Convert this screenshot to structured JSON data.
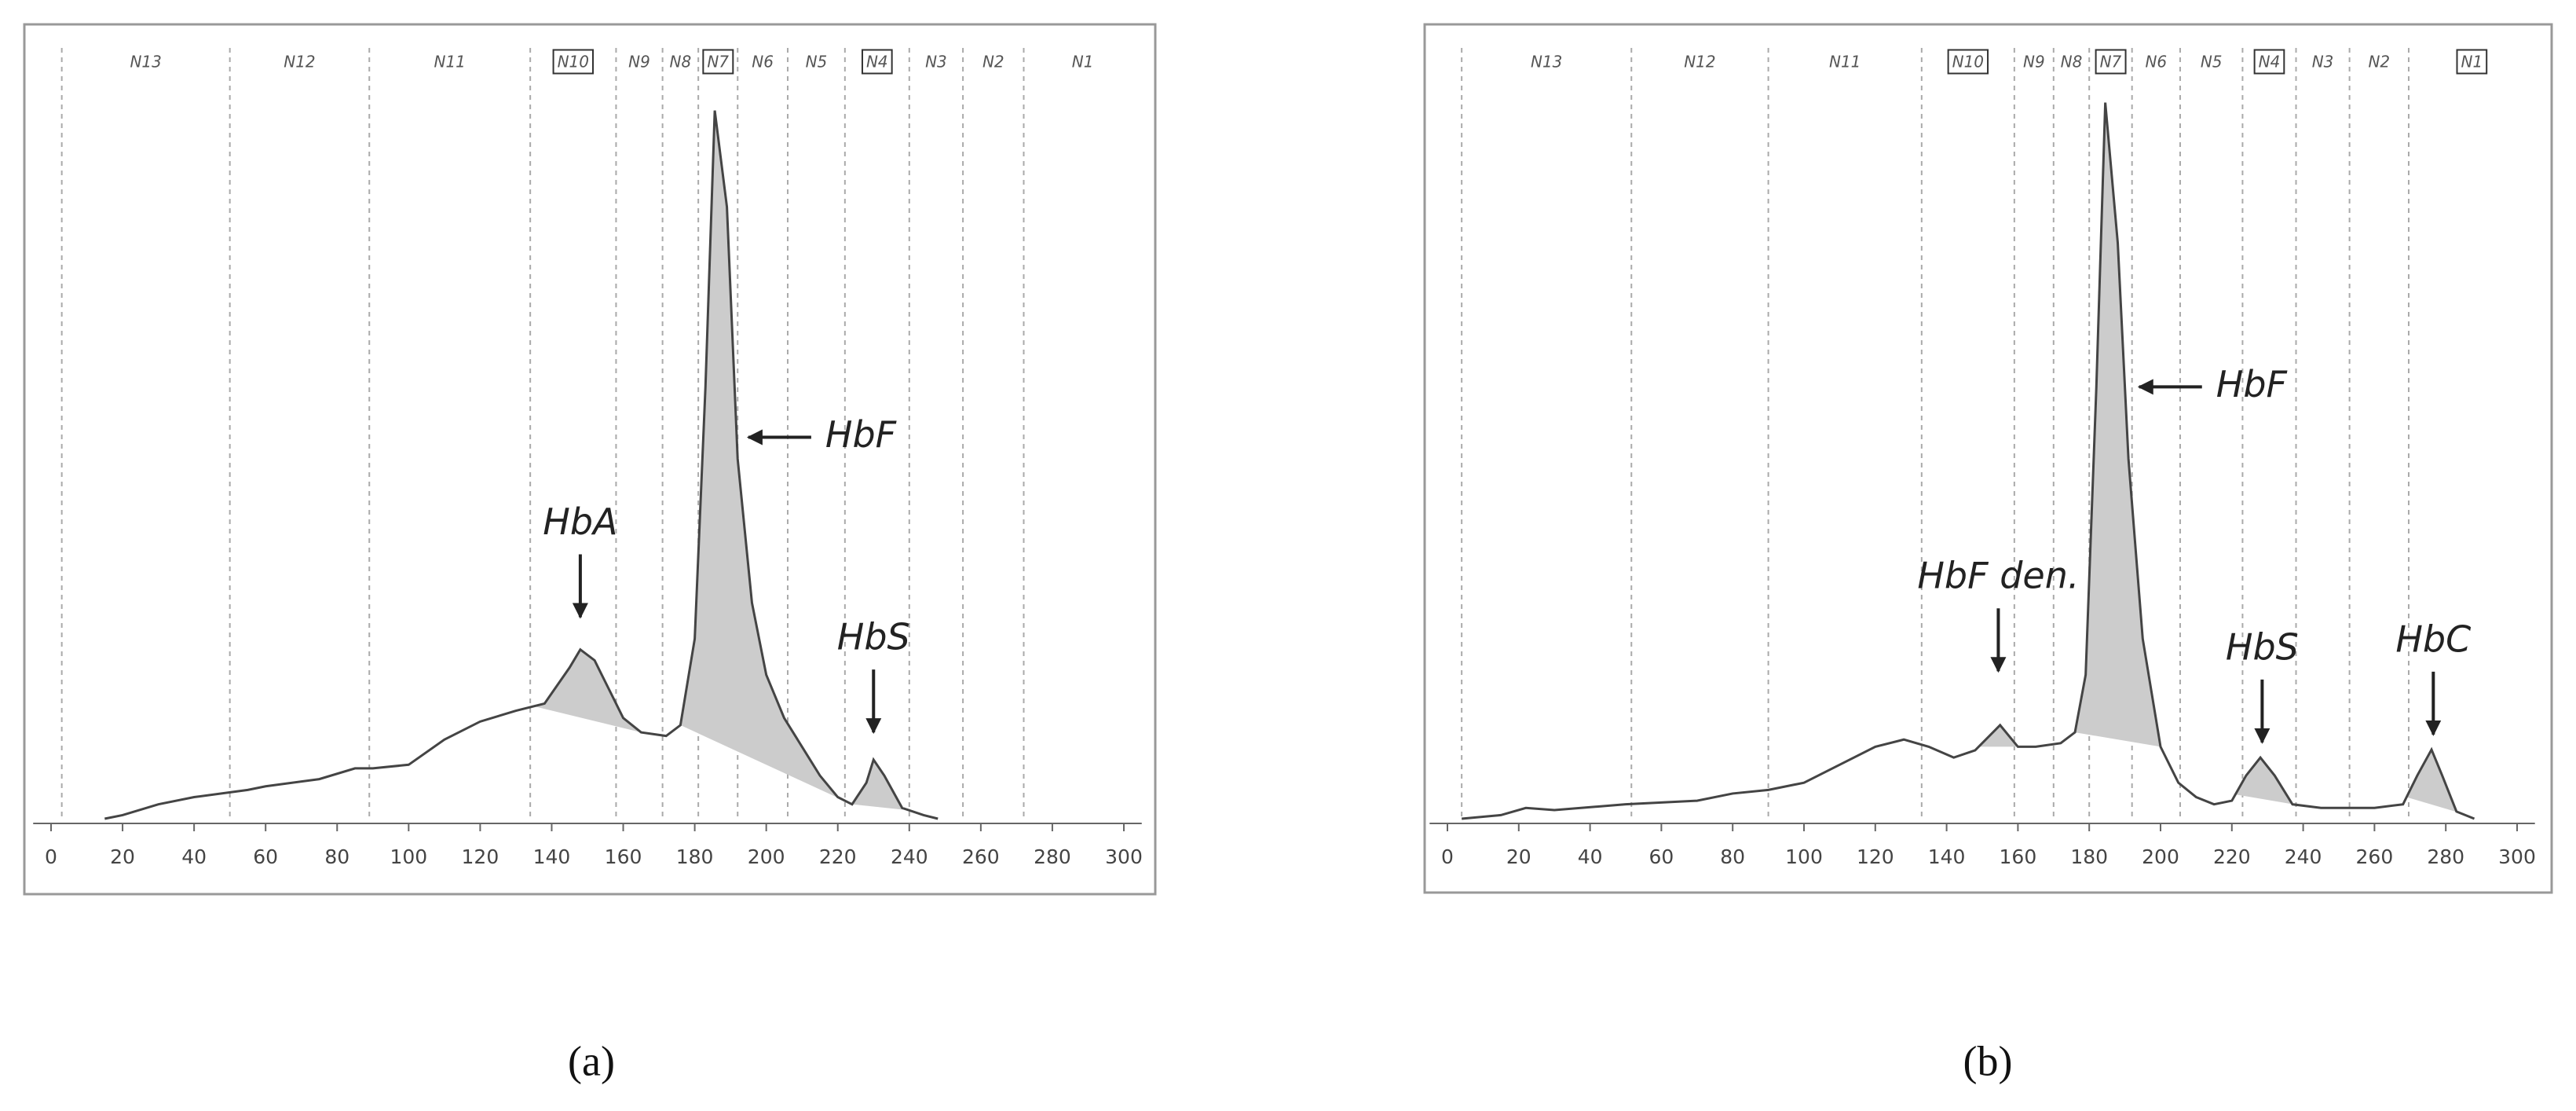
{
  "chart_data": [
    {
      "type": "line",
      "caption": "(a)",
      "xlim": [
        -5,
        305
      ],
      "ylim": [
        0,
        100
      ],
      "xticks": [
        0,
        20,
        40,
        60,
        80,
        100,
        120,
        140,
        160,
        180,
        200,
        220,
        240,
        260,
        280,
        300
      ],
      "x": [
        15,
        20,
        30,
        40,
        55,
        60,
        75,
        85,
        90,
        100,
        110,
        120,
        130,
        138,
        145,
        148,
        152,
        156,
        160,
        165,
        172,
        176,
        180,
        183,
        185.6,
        189,
        192,
        196,
        200,
        205,
        210,
        215,
        220,
        224,
        228,
        230,
        233,
        238,
        244,
        248
      ],
      "series": [
        {
          "color": "#444444",
          "values": [
            0,
            0.5,
            2,
            3,
            4,
            4.5,
            5.5,
            7,
            7,
            7.5,
            11,
            13.5,
            15,
            16,
            21,
            23.5,
            22,
            18,
            14,
            12,
            11.5,
            13,
            25,
            60,
            98.4,
            85,
            50,
            30,
            20,
            14,
            10,
            6,
            3,
            2,
            5,
            8.2,
            6,
            1.5,
            0.5,
            0
          ]
        }
      ],
      "shaded": [
        [
          135,
          165
        ],
        [
          176,
          224
        ],
        [
          224,
          240
        ]
      ],
      "zones": [
        {
          "label": "N13",
          "start": 3,
          "boxed": false
        },
        {
          "label": "N12",
          "start": 50,
          "boxed": false
        },
        {
          "label": "N11",
          "start": 89,
          "boxed": false
        },
        {
          "label": "N10",
          "start": 134,
          "boxed": true
        },
        {
          "label": "N9",
          "start": 158,
          "boxed": false
        },
        {
          "label": "N8",
          "start": 171,
          "boxed": false
        },
        {
          "label": "N7",
          "start": 181,
          "boxed": true
        },
        {
          "label": "N6",
          "start": 192,
          "boxed": false
        },
        {
          "label": "N5",
          "start": 206,
          "boxed": false
        },
        {
          "label": "N4",
          "start": 222,
          "boxed": true
        },
        {
          "label": "N3",
          "start": 240,
          "boxed": false
        },
        {
          "label": "N2",
          "start": 255,
          "boxed": false
        },
        {
          "label": "N1",
          "start": 272,
          "boxed": false
        }
      ],
      "annotations": [
        {
          "text": "HbA",
          "x": 148,
          "y": 28,
          "arrow": "down"
        },
        {
          "text": "HbF",
          "x": 195,
          "y": 53,
          "arrow": "left"
        },
        {
          "text": "HbS",
          "x": 230,
          "y": 12,
          "arrow": "down"
        }
      ]
    },
    {
      "type": "line",
      "caption": "(b)",
      "xlim": [
        -5,
        305
      ],
      "ylim": [
        0,
        100
      ],
      "xticks": [
        0,
        20,
        40,
        60,
        80,
        100,
        120,
        140,
        160,
        180,
        200,
        220,
        240,
        260,
        280,
        300
      ],
      "x": [
        4,
        15,
        22,
        30,
        50,
        70,
        80,
        90,
        100,
        110,
        120,
        128,
        135,
        142,
        148,
        155,
        160,
        165,
        172,
        176,
        179,
        182,
        184.5,
        188,
        191,
        195,
        200,
        205,
        210,
        215,
        220,
        224,
        228,
        232,
        237,
        245,
        260,
        268,
        272,
        276,
        279,
        283,
        288
      ],
      "series": [
        {
          "color": "#444444",
          "values": [
            0,
            0.5,
            1.5,
            1.2,
            2,
            2.5,
            3.5,
            4,
            5,
            7.5,
            10,
            11,
            10,
            8.5,
            9.5,
            13,
            10,
            10,
            10.5,
            12,
            20,
            60,
            99.5,
            80,
            50,
            25,
            10,
            5,
            3,
            2,
            2.5,
            6,
            8.5,
            6,
            2,
            1.5,
            1.5,
            2,
            6,
            9.6,
            6,
            1,
            0
          ]
        }
      ],
      "shaded": [
        [
          149,
          162
        ],
        [
          176,
          200
        ],
        [
          221,
          238
        ],
        [
          269,
          284
        ]
      ],
      "zones": [
        {
          "label": "N13",
          "start": 4,
          "boxed": false
        },
        {
          "label": "N12",
          "start": 51.6,
          "boxed": false
        },
        {
          "label": "N11",
          "start": 90,
          "boxed": false
        },
        {
          "label": "N10",
          "start": 133,
          "boxed": true
        },
        {
          "label": "N9",
          "start": 159,
          "boxed": false
        },
        {
          "label": "N8",
          "start": 170,
          "boxed": false
        },
        {
          "label": "N7",
          "start": 180,
          "boxed": true
        },
        {
          "label": "N6",
          "start": 192,
          "boxed": false
        },
        {
          "label": "N5",
          "start": 205.5,
          "boxed": false
        },
        {
          "label": "N4",
          "start": 223,
          "boxed": true
        },
        {
          "label": "N3",
          "start": 238,
          "boxed": false
        },
        {
          "label": "N2",
          "start": 253,
          "boxed": false
        },
        {
          "label": "N1",
          "start": 269.6,
          "boxed": true
        }
      ],
      "annotations": [
        {
          "text": "HbF den.",
          "x": 154.5,
          "y": 20.5,
          "arrow": "down"
        },
        {
          "text": "HbF",
          "x": 194,
          "y": 60,
          "arrow": "left"
        },
        {
          "text": "HbS",
          "x": 228.5,
          "y": 10.6,
          "arrow": "down"
        },
        {
          "text": "HbC",
          "x": 276.5,
          "y": 11.7,
          "arrow": "down"
        }
      ]
    }
  ]
}
